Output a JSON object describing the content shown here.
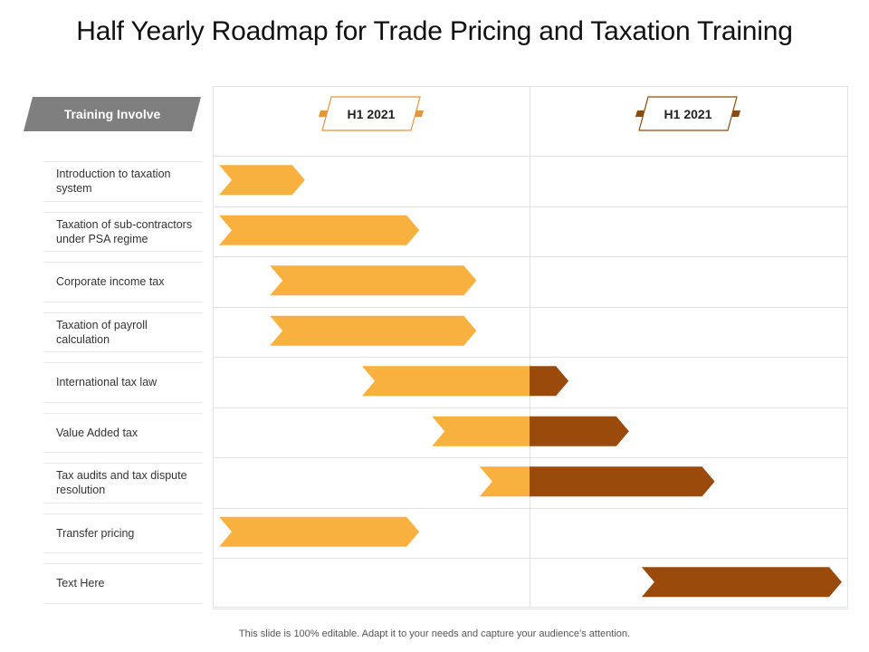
{
  "title": "Half Yearly Roadmap for Trade Pricing and Taxation Training",
  "header": {
    "label": "Training Involve",
    "color": "#7f7f7f"
  },
  "periods": [
    {
      "label": "H1 2021",
      "accent": "#e7953a"
    },
    {
      "label": "H1 2021",
      "accent": "#8c4a12"
    }
  ],
  "colors": {
    "phase1": "#f8b03f",
    "phase2": "#9a4a0b"
  },
  "chart_data": {
    "type": "gantt",
    "axis": {
      "min": 0,
      "max": 2,
      "unit": "half-year period",
      "labels": [
        "H1 2021",
        "H1 2021"
      ]
    },
    "tasks": [
      {
        "label": "Introduction to taxation system",
        "start": 0.02,
        "end": 0.29
      },
      {
        "label": "Taxation of sub-contractors under PSA regime",
        "start": 0.02,
        "end": 0.65
      },
      {
        "label": "Corporate income tax",
        "start": 0.18,
        "end": 0.83
      },
      {
        "label": "Taxation of payroll calculation",
        "start": 0.18,
        "end": 0.83
      },
      {
        "label": "International tax law",
        "start": 0.47,
        "end": 1.12
      },
      {
        "label": "Value Added tax",
        "start": 0.69,
        "end": 1.31
      },
      {
        "label": "Tax audits and tax dispute resolution",
        "start": 0.84,
        "end": 1.58
      },
      {
        "label": "Transfer pricing",
        "start": 0.02,
        "end": 0.65
      },
      {
        "label": "Text Here",
        "start": 1.35,
        "end": 1.98
      }
    ]
  },
  "footer": "This slide is 100% editable. Adapt it to your needs and capture your audience’s attention."
}
